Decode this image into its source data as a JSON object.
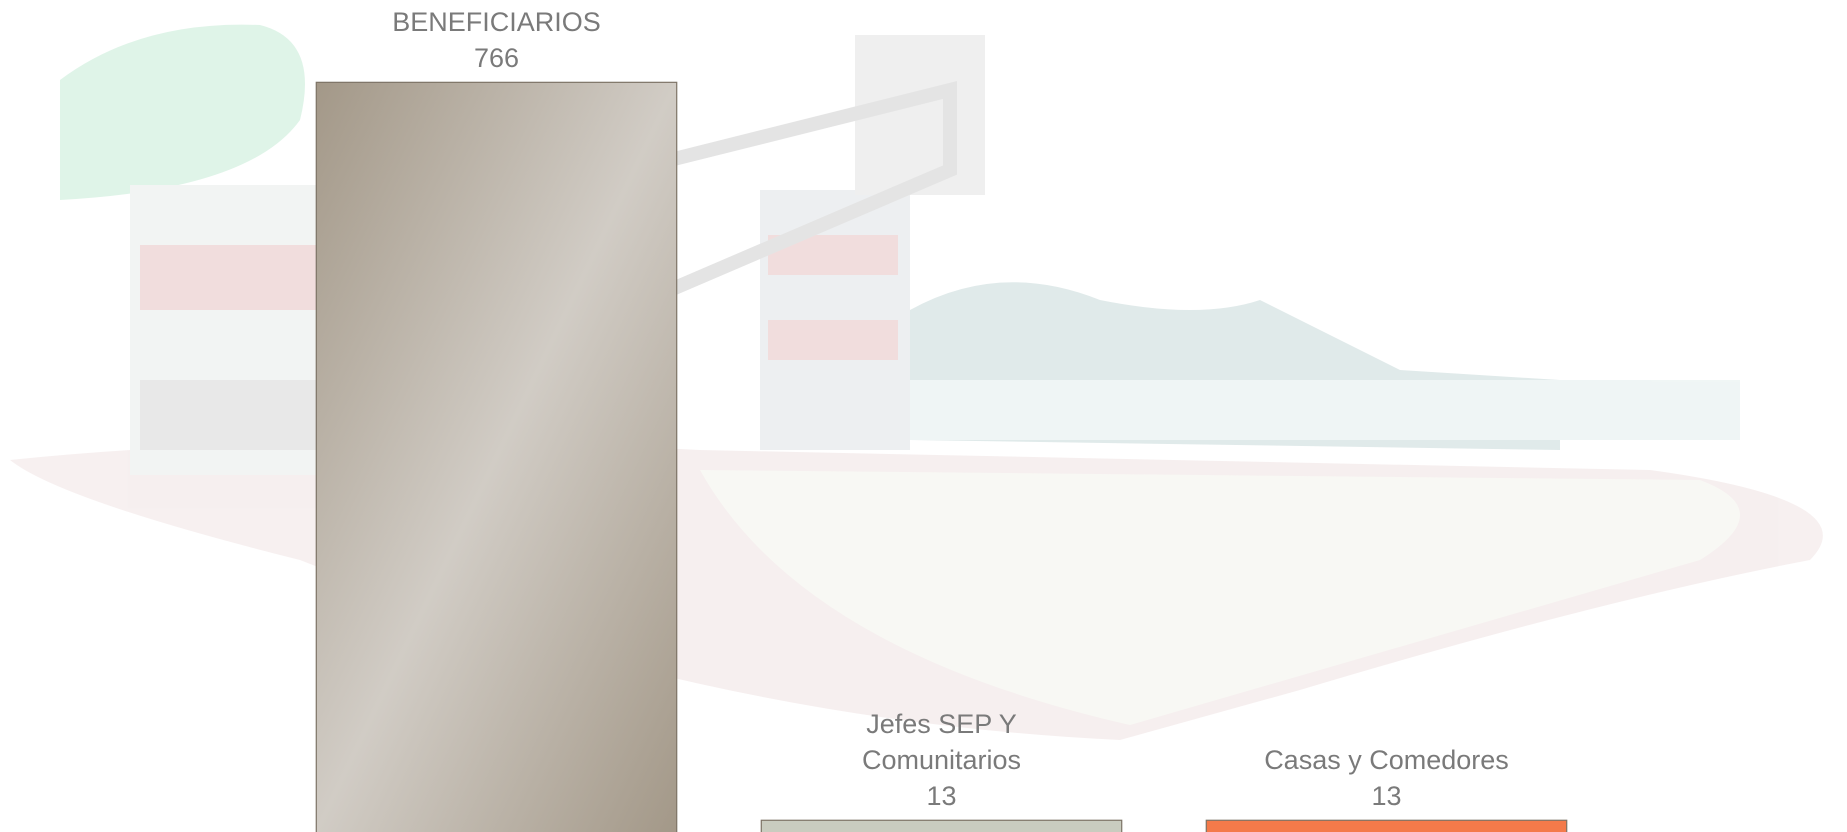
{
  "chart_data": {
    "type": "bar",
    "categories": [
      "BENEFICIARIOS",
      "Jefes SEP Y Comunitarios",
      "Casas y Comedores"
    ],
    "values": [
      766,
      13,
      13
    ],
    "colors": [
      "#a89f93",
      "#c9ccbf",
      "#f47a4a"
    ],
    "ylim": [
      0,
      850
    ]
  }
}
